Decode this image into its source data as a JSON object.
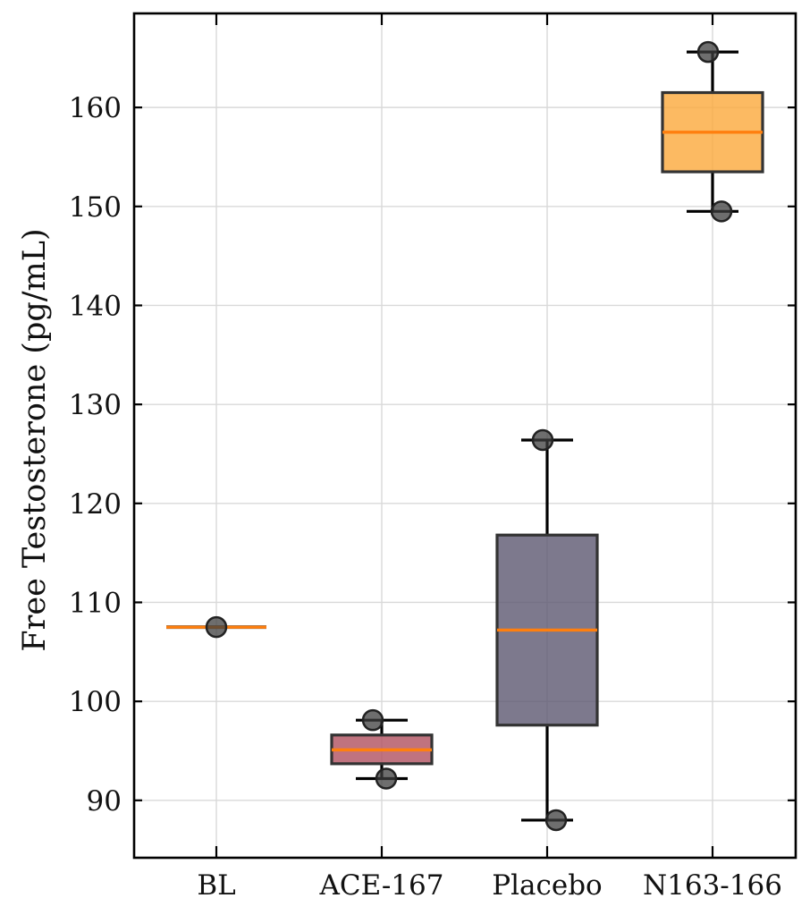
{
  "chart_data": {
    "type": "box",
    "title": "",
    "xlabel": "",
    "ylabel": "Free Testosterone (pg/mL)",
    "categories": [
      "BL",
      "ACE-167",
      "Placebo",
      "N163-166"
    ],
    "ylim": [
      84.2,
      169.5
    ],
    "yticks": [
      90,
      100,
      110,
      120,
      130,
      140,
      150,
      160
    ],
    "grid": true,
    "groups": [
      {
        "label": "BL",
        "q1": 107.5,
        "median": 107.5,
        "q3": 107.5,
        "whisker_low": 107.5,
        "whisker_high": 107.5,
        "points": [
          107.5
        ],
        "color": "#e07b20"
      },
      {
        "label": "ACE-167",
        "q1": 93.7,
        "median": 95.1,
        "q3": 96.6,
        "whisker_low": 92.2,
        "whisker_high": 98.1,
        "points": [
          98.1,
          92.2
        ],
        "color": "#b0505f"
      },
      {
        "label": "Placebo",
        "q1": 97.6,
        "median": 107.2,
        "q3": 116.8,
        "whisker_low": 88.0,
        "whisker_high": 126.4,
        "points": [
          126.4,
          88.0
        ],
        "color": "#5c5770"
      },
      {
        "label": "N163-166",
        "q1": 153.5,
        "median": 157.5,
        "q3": 161.5,
        "whisker_low": 149.5,
        "whisker_high": 165.6,
        "points": [
          165.6,
          149.5
        ],
        "color": "#fba93b"
      }
    ],
    "median_color": "#ff7f0e"
  }
}
